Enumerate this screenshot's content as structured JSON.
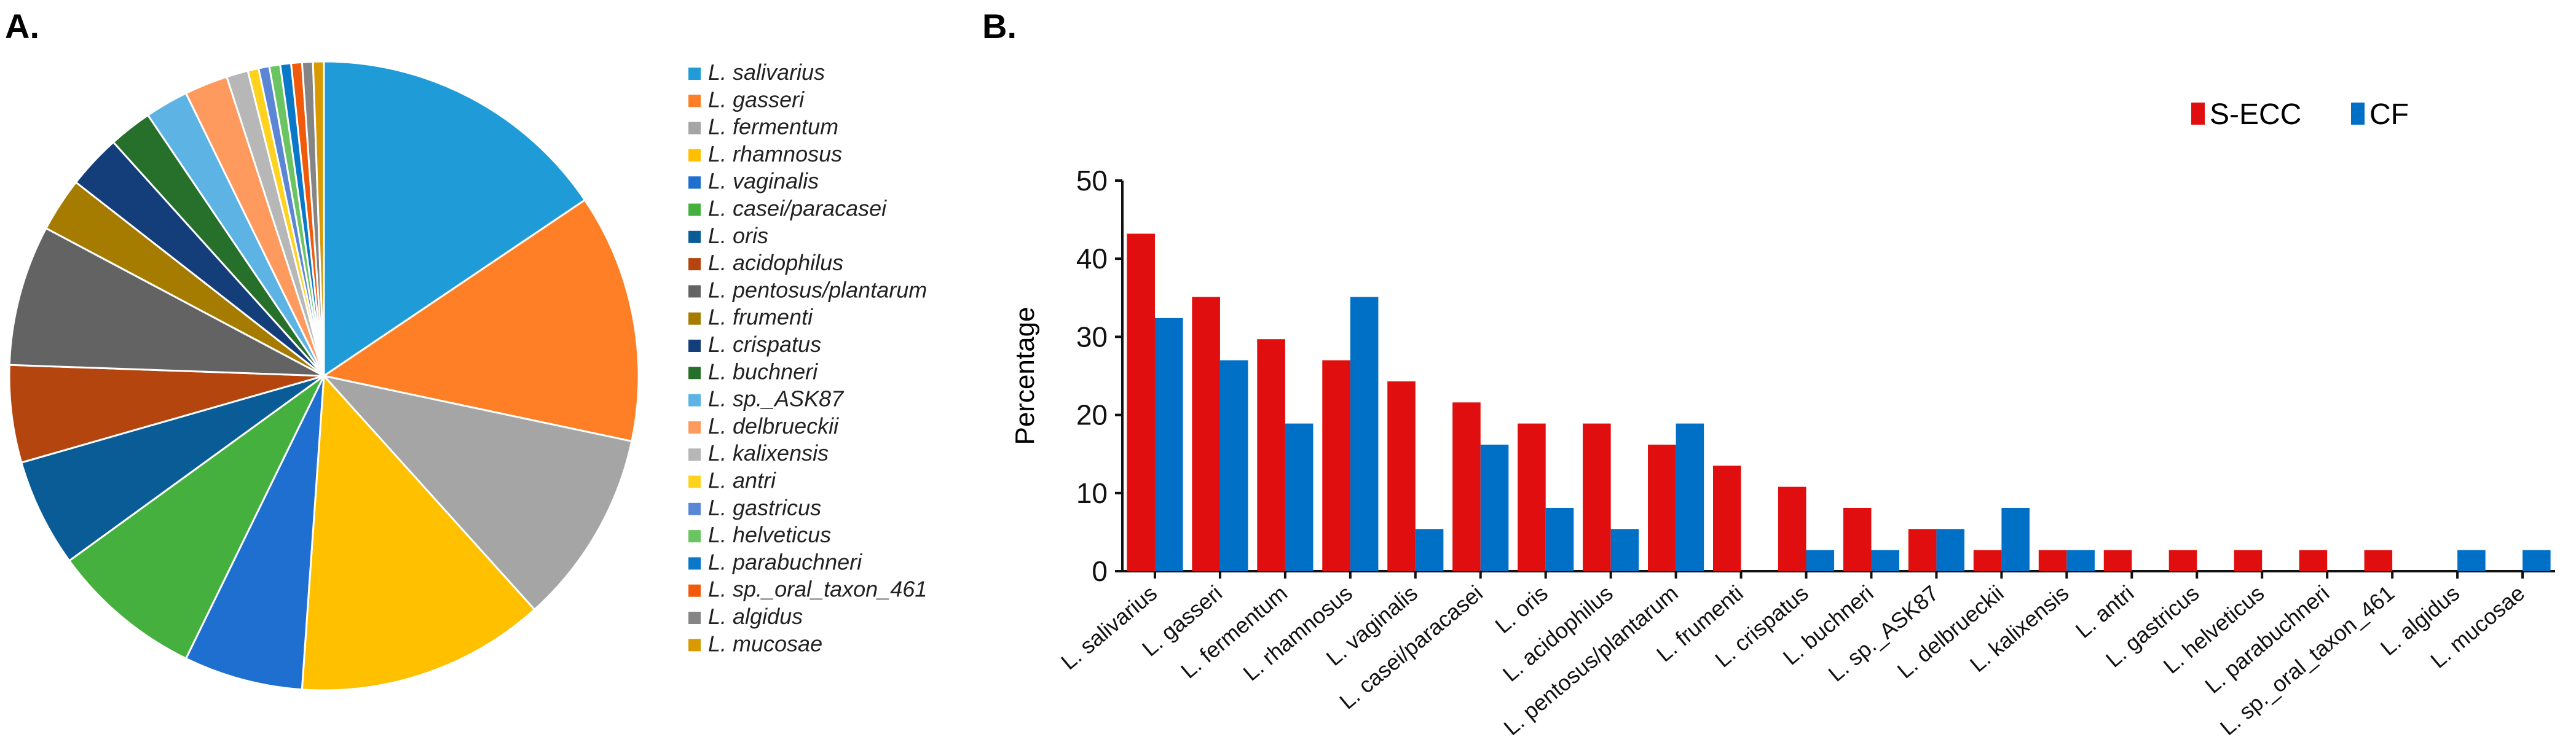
{
  "panels": {
    "a": "A.",
    "b": "B."
  },
  "chart_data": [
    {
      "type": "pie",
      "note_values_unit": "percent of total",
      "categories": [
        "L. salivarius",
        "L. gasseri",
        "L. fermentum",
        "L. rhamnosus",
        "L. vaginalis",
        "L. casei/paracasei",
        "L. oris",
        "L. acidophilus",
        "L. pentosus/plantarum",
        "L. frumenti",
        "L. crispatus",
        "L. buchneri",
        "L. sp._ASK87",
        "L. delbrueckii",
        "L. kalixensis",
        "L. antri",
        "L. gastricus",
        "L. helveticus",
        "L. parabuchneri",
        "L. sp._oral_taxon_461",
        "L. algidus",
        "L. mucosae"
      ],
      "values": [
        14,
        11.5,
        9,
        11.5,
        5.5,
        7,
        5,
        4.5,
        6.5,
        2.5,
        2.5,
        2,
        2,
        2,
        1,
        0.5,
        0.5,
        0.5,
        0.5,
        0.5,
        0.5,
        0.5
      ],
      "colors": [
        "#1F9BD7",
        "#FF7F27",
        "#A5A5A5",
        "#FFC000",
        "#1F6FD0",
        "#45B03D",
        "#0A5C96",
        "#B5450F",
        "#636363",
        "#A67C00",
        "#143E7A",
        "#26702B",
        "#5DB3E3",
        "#FF9A5E",
        "#B7B7B7",
        "#FFD21E",
        "#5B86D6",
        "#6BC462",
        "#0A78C9",
        "#F05A0A",
        "#858585",
        "#D99A00"
      ],
      "legend": "right"
    },
    {
      "type": "bar",
      "categories": [
        "L. salivarius",
        "L. gasseri",
        "L. fermentum",
        "L. rhamnosus",
        "L. vaginalis",
        "L. casei/paracasei",
        "L. oris",
        "L. acidophilus",
        "L. pentosus/plantarum",
        "L. frumenti",
        "L. crispatus",
        "L. buchneri",
        "L. sp._ASK87",
        "L. delbrueckii",
        "L. kalixensis",
        "L. antri",
        "L. gastricus",
        "L. helveticus",
        "L. parabuchneri",
        "L. sp._oral_taxon_461",
        "L. algidus",
        "L. mucosae"
      ],
      "series": [
        {
          "name": "S-ECC",
          "color": "#E00E0E",
          "values": [
            43.2,
            35.1,
            29.7,
            27.0,
            24.3,
            21.6,
            18.9,
            18.9,
            16.2,
            13.5,
            10.8,
            8.1,
            5.4,
            2.7,
            2.7,
            2.7,
            2.7,
            2.7,
            2.7,
            2.7,
            0,
            0
          ]
        },
        {
          "name": "CF",
          "color": "#0070C6",
          "values": [
            32.4,
            27.0,
            18.9,
            35.1,
            5.4,
            16.2,
            8.1,
            5.4,
            18.9,
            0,
            2.7,
            2.7,
            5.4,
            8.1,
            2.7,
            0,
            0,
            0,
            0,
            0,
            2.7,
            2.7
          ]
        }
      ],
      "ylabel": "Percentage",
      "xlabel": "",
      "ylim": [
        0,
        50
      ],
      "yticks": [
        "0",
        "10",
        "20",
        "30",
        "40",
        "50"
      ],
      "grid": false,
      "legend": "top-right"
    }
  ]
}
